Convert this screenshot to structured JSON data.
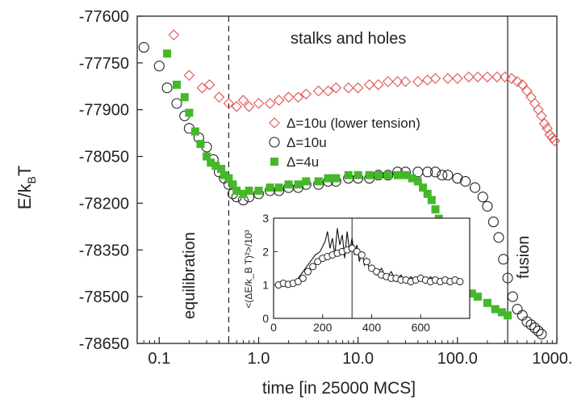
{
  "chart_data": {
    "type": "scatter",
    "xlabel": "time [in 25000 MCS]",
    "ylabel_main": "E/k",
    "ylabel_sub": "B",
    "ylabel_end": "T",
    "x_scale": "log",
    "xlim": [
      0.06,
      1000
    ],
    "ylim": [
      -78650,
      -77600
    ],
    "x_ticks": [
      {
        "v": 0.1,
        "label": "0.1"
      },
      {
        "v": 1,
        "label": "1.0"
      },
      {
        "v": 10,
        "label": "10.0"
      },
      {
        "v": 100,
        "label": "100.0"
      },
      {
        "v": 1000,
        "label": "1000.0"
      }
    ],
    "y_ticks": [
      {
        "v": -77600,
        "label": "-77600"
      },
      {
        "v": -77750,
        "label": "-77750"
      },
      {
        "v": -77900,
        "label": "-77900"
      },
      {
        "v": -78050,
        "label": "-78050"
      },
      {
        "v": -78200,
        "label": "-78200"
      },
      {
        "v": -78350,
        "label": "-78350"
      },
      {
        "v": -78500,
        "label": "-78500"
      },
      {
        "v": -78650,
        "label": "-78650"
      }
    ],
    "annotations": {
      "stalks": "stalks and holes",
      "equilibration": "equilibration",
      "fusion": "fusion"
    },
    "vlines": [
      {
        "x": 0.5,
        "style": "dashed"
      },
      {
        "x": 320,
        "style": "solid"
      }
    ],
    "legend": [
      {
        "label": "Δ=10u (lower tension)",
        "marker": "diamond",
        "color": "#e06060"
      },
      {
        "label": "Δ=10u",
        "marker": "circle",
        "color": "#222222"
      },
      {
        "label": "Δ=4u",
        "marker": "square",
        "color": "#44b82a"
      }
    ],
    "series": [
      {
        "name": "Δ=10u (lower tension)",
        "marker": "diamond",
        "color": "#e06060",
        "points": [
          [
            0.14,
            -77660
          ],
          [
            0.2,
            -77790
          ],
          [
            0.27,
            -77830
          ],
          [
            0.32,
            -77820
          ],
          [
            0.4,
            -77860
          ],
          [
            0.5,
            -77880
          ],
          [
            0.6,
            -77890
          ],
          [
            0.7,
            -77870
          ],
          [
            0.8,
            -77890
          ],
          [
            1.0,
            -77880
          ],
          [
            1.3,
            -77880
          ],
          [
            1.6,
            -77870
          ],
          [
            2,
            -77860
          ],
          [
            2.5,
            -77860
          ],
          [
            3,
            -77850
          ],
          [
            4,
            -77840
          ],
          [
            5,
            -77840
          ],
          [
            6,
            -77830
          ],
          [
            8,
            -77830
          ],
          [
            10,
            -77830
          ],
          [
            13,
            -77820
          ],
          [
            16,
            -77820
          ],
          [
            20,
            -77810
          ],
          [
            25,
            -77810
          ],
          [
            30,
            -77810
          ],
          [
            40,
            -77810
          ],
          [
            50,
            -77805
          ],
          [
            60,
            -77800
          ],
          [
            80,
            -77800
          ],
          [
            100,
            -77800
          ],
          [
            130,
            -77795
          ],
          [
            160,
            -77795
          ],
          [
            200,
            -77795
          ],
          [
            250,
            -77795
          ],
          [
            300,
            -77795
          ],
          [
            350,
            -77800
          ],
          [
            400,
            -77810
          ],
          [
            450,
            -77820
          ],
          [
            500,
            -77840
          ],
          [
            550,
            -77860
          ],
          [
            600,
            -77880
          ],
          [
            650,
            -77900
          ],
          [
            700,
            -77920
          ],
          [
            750,
            -77945
          ],
          [
            800,
            -77960
          ],
          [
            850,
            -77980
          ],
          [
            900,
            -77990
          ],
          [
            950,
            -78000
          ]
        ]
      },
      {
        "name": "Δ=10u",
        "marker": "circle",
        "color": "#222222",
        "points": [
          [
            0.07,
            -77700
          ],
          [
            0.1,
            -77760
          ],
          [
            0.12,
            -77830
          ],
          [
            0.15,
            -77880
          ],
          [
            0.18,
            -77920
          ],
          [
            0.2,
            -77960
          ],
          [
            0.25,
            -77990
          ],
          [
            0.3,
            -78020
          ],
          [
            0.35,
            -78060
          ],
          [
            0.4,
            -78100
          ],
          [
            0.45,
            -78120
          ],
          [
            0.5,
            -78140
          ],
          [
            0.55,
            -78170
          ],
          [
            0.6,
            -78180
          ],
          [
            0.7,
            -78190
          ],
          [
            0.8,
            -78180
          ],
          [
            1.0,
            -78170
          ],
          [
            1.3,
            -78160
          ],
          [
            1.6,
            -78160
          ],
          [
            2,
            -78150
          ],
          [
            2.5,
            -78150
          ],
          [
            3,
            -78140
          ],
          [
            4,
            -78140
          ],
          [
            5,
            -78130
          ],
          [
            6,
            -78130
          ],
          [
            8,
            -78120
          ],
          [
            10,
            -78120
          ],
          [
            13,
            -78120
          ],
          [
            16,
            -78110
          ],
          [
            20,
            -78110
          ],
          [
            25,
            -78100
          ],
          [
            30,
            -78100
          ],
          [
            40,
            -78100
          ],
          [
            50,
            -78100
          ],
          [
            60,
            -78100
          ],
          [
            70,
            -78110
          ],
          [
            80,
            -78110
          ],
          [
            100,
            -78120
          ],
          [
            120,
            -78130
          ],
          [
            150,
            -78150
          ],
          [
            180,
            -78180
          ],
          [
            200,
            -78210
          ],
          [
            230,
            -78260
          ],
          [
            260,
            -78310
          ],
          [
            290,
            -78380
          ],
          [
            320,
            -78440
          ],
          [
            360,
            -78500
          ],
          [
            400,
            -78540
          ],
          [
            450,
            -78560
          ],
          [
            500,
            -78580
          ],
          [
            550,
            -78590
          ],
          [
            600,
            -78600
          ],
          [
            650,
            -78610
          ],
          [
            700,
            -78620
          ]
        ]
      },
      {
        "name": "Δ=4u",
        "marker": "square",
        "color": "#44b82a",
        "points": [
          [
            0.12,
            -77720
          ],
          [
            0.15,
            -77820
          ],
          [
            0.18,
            -77860
          ],
          [
            0.2,
            -77910
          ],
          [
            0.23,
            -77970
          ],
          [
            0.26,
            -78010
          ],
          [
            0.3,
            -78050
          ],
          [
            0.33,
            -78070
          ],
          [
            0.37,
            -78080
          ],
          [
            0.42,
            -78090
          ],
          [
            0.45,
            -78110
          ],
          [
            0.5,
            -78120
          ],
          [
            0.55,
            -78140
          ],
          [
            0.6,
            -78160
          ],
          [
            0.7,
            -78170
          ],
          [
            0.8,
            -78160
          ],
          [
            1.0,
            -78160
          ],
          [
            1.3,
            -78150
          ],
          [
            1.6,
            -78150
          ],
          [
            2,
            -78140
          ],
          [
            2.5,
            -78140
          ],
          [
            3,
            -78130
          ],
          [
            4,
            -78130
          ],
          [
            5,
            -78120
          ],
          [
            6,
            -78120
          ],
          [
            8,
            -78110
          ],
          [
            10,
            -78110
          ],
          [
            13,
            -78110
          ],
          [
            16,
            -78110
          ],
          [
            20,
            -78110
          ],
          [
            25,
            -78110
          ],
          [
            30,
            -78110
          ],
          [
            35,
            -78120
          ],
          [
            40,
            -78130
          ],
          [
            45,
            -78150
          ],
          [
            50,
            -78170
          ],
          [
            55,
            -78190
          ],
          [
            60,
            -78220
          ],
          [
            65,
            -78250
          ],
          [
            70,
            -78280
          ],
          [
            75,
            -78310
          ],
          [
            80,
            -78340
          ],
          [
            90,
            -78380
          ],
          [
            100,
            -78420
          ],
          [
            110,
            -78450
          ],
          [
            120,
            -78470
          ],
          [
            140,
            -78490
          ],
          [
            160,
            -78500
          ],
          [
            200,
            -78520
          ],
          [
            240,
            -78540
          ],
          [
            280,
            -78550
          ],
          [
            320,
            -78560
          ]
        ]
      }
    ],
    "inset": {
      "type": "line+scatter",
      "ylabel": "<(ΔE/k_B T)²>/10³",
      "xlim": [
        0,
        800
      ],
      "ylim": [
        0,
        3
      ],
      "x_ticks": [
        {
          "v": 0,
          "label": "0"
        },
        {
          "v": 200,
          "label": "200"
        },
        {
          "v": 400,
          "label": "400"
        },
        {
          "v": 600,
          "label": "600"
        }
      ],
      "y_ticks": [
        {
          "v": 0,
          "label": "0"
        },
        {
          "v": 1,
          "label": "1"
        },
        {
          "v": 2,
          "label": "2"
        },
        {
          "v": 3,
          "label": "3"
        }
      ],
      "vline": 320,
      "circles": [
        [
          20,
          1.0
        ],
        [
          40,
          1.05
        ],
        [
          60,
          1.02
        ],
        [
          80,
          1.05
        ],
        [
          100,
          1.1
        ],
        [
          120,
          1.2
        ],
        [
          140,
          1.4
        ],
        [
          160,
          1.55
        ],
        [
          180,
          1.7
        ],
        [
          200,
          1.8
        ],
        [
          220,
          1.85
        ],
        [
          240,
          1.9
        ],
        [
          260,
          1.95
        ],
        [
          280,
          2.0
        ],
        [
          300,
          2.05
        ],
        [
          320,
          2.1
        ],
        [
          340,
          2.0
        ],
        [
          360,
          1.9
        ],
        [
          380,
          1.7
        ],
        [
          400,
          1.5
        ],
        [
          420,
          1.4
        ],
        [
          440,
          1.3
        ],
        [
          460,
          1.25
        ],
        [
          480,
          1.2
        ],
        [
          500,
          1.2
        ],
        [
          520,
          1.15
        ],
        [
          540,
          1.15
        ],
        [
          560,
          1.1
        ],
        [
          580,
          1.15
        ],
        [
          600,
          1.2
        ],
        [
          620,
          1.15
        ],
        [
          640,
          1.1
        ],
        [
          660,
          1.15
        ],
        [
          680,
          1.1
        ],
        [
          700,
          1.15
        ],
        [
          720,
          1.1
        ],
        [
          740,
          1.15
        ],
        [
          760,
          1.1
        ]
      ],
      "line": [
        [
          10,
          1.0
        ],
        [
          30,
          1.1
        ],
        [
          50,
          0.95
        ],
        [
          70,
          1.05
        ],
        [
          90,
          1.1
        ],
        [
          110,
          1.3
        ],
        [
          130,
          1.5
        ],
        [
          150,
          1.7
        ],
        [
          170,
          1.9
        ],
        [
          190,
          2.0
        ],
        [
          210,
          2.3
        ],
        [
          220,
          2.6
        ],
        [
          230,
          2.1
        ],
        [
          240,
          2.4
        ],
        [
          250,
          1.9
        ],
        [
          260,
          2.7
        ],
        [
          270,
          2.2
        ],
        [
          280,
          2.5
        ],
        [
          290,
          1.8
        ],
        [
          300,
          2.6
        ],
        [
          310,
          2.0
        ],
        [
          320,
          2.4
        ],
        [
          330,
          1.9
        ],
        [
          340,
          2.2
        ],
        [
          350,
          1.7
        ],
        [
          360,
          2.0
        ],
        [
          370,
          1.6
        ],
        [
          380,
          1.8
        ],
        [
          390,
          1.5
        ],
        [
          400,
          1.6
        ],
        [
          420,
          1.3
        ],
        [
          440,
          1.5
        ],
        [
          460,
          1.2
        ],
        [
          480,
          1.4
        ],
        [
          500,
          1.1
        ],
        [
          520,
          1.3
        ],
        [
          540,
          1.05
        ],
        [
          560,
          1.25
        ],
        [
          580,
          1.1
        ],
        [
          600,
          1.3
        ],
        [
          620,
          1.05
        ],
        [
          640,
          1.25
        ],
        [
          660,
          1.1
        ],
        [
          680,
          1.2
        ],
        [
          700,
          1.05
        ],
        [
          720,
          1.2
        ],
        [
          740,
          1.1
        ],
        [
          760,
          1.2
        ]
      ]
    }
  }
}
